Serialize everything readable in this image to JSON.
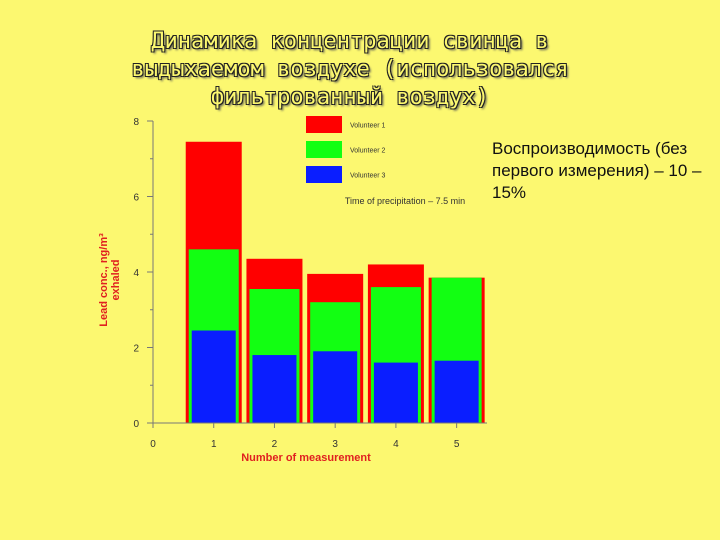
{
  "slide": {
    "title": "Динамика концентрации свинца в выдыхаемом воздухе (использовался фильтрованный воздух)",
    "side_note": "Воспроизводимость (без первого измерения) – 10 – 15%"
  },
  "colors": {
    "background": "#fcf870",
    "volunteer1": "#ff0000",
    "volunteer2": "#12ff12",
    "volunteer3": "#0a1eff",
    "axis_title": "#e02020"
  },
  "chart_data": {
    "type": "bar",
    "layout": "overlapping",
    "categories": [
      "1",
      "2",
      "3",
      "4",
      "5"
    ],
    "series": [
      {
        "name": "Volunteer 1",
        "color": "#ff0000",
        "values": [
          7.45,
          4.35,
          3.95,
          4.2,
          3.85
        ]
      },
      {
        "name": "Volunteer 2",
        "color": "#12ff12",
        "values": [
          4.6,
          3.55,
          3.2,
          3.6,
          3.85
        ]
      },
      {
        "name": "Volunteer 3",
        "color": "#0a1eff",
        "values": [
          2.45,
          1.8,
          1.9,
          1.6,
          1.65
        ]
      }
    ],
    "xlabel": "Number of measurement",
    "ylabel_lines": [
      "Lead conc., ng/m³",
      "exhaled"
    ],
    "xlim": [
      0,
      5.5
    ],
    "ylim": [
      0,
      8
    ],
    "x_ticks": [
      "0",
      "1",
      "2",
      "3",
      "4",
      "5"
    ],
    "y_ticks": [
      "0",
      "2",
      "4",
      "6",
      "8"
    ],
    "annotation": "Time of precipitation – 7.5 min",
    "legend_position": "top-right inside plot",
    "grid": false
  }
}
